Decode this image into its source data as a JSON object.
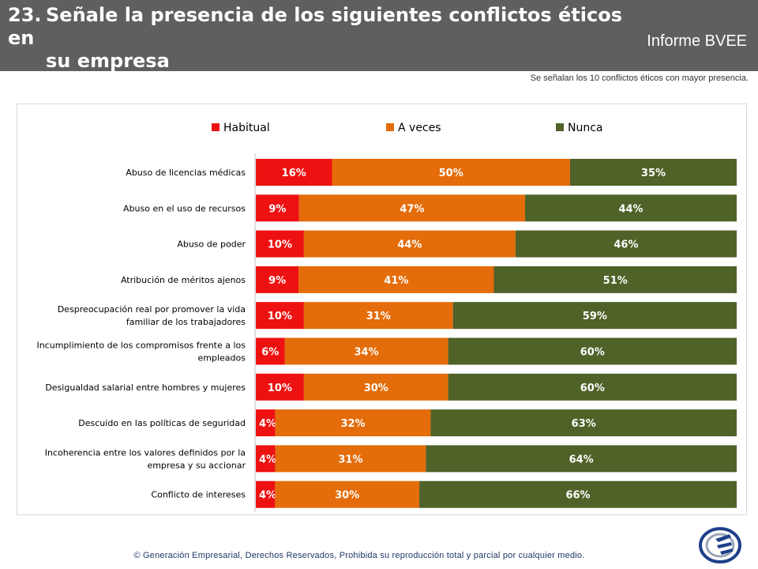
{
  "header": {
    "number": "23.",
    "title_line1": "Señale la presencia de los siguientes conflictos éticos en",
    "title_line2": "su empresa",
    "report_label": "Informe BVEE"
  },
  "subtitle": "Se señalan los 10 conflictos éticos con mayor presencia.",
  "footer": "© Generación Empresarial, Derechos Reservados, Prohibida su reproducción total y parcial por cualquier medio.",
  "colors": {
    "habitual": "#ee1111",
    "a_veces": "#e46c0a",
    "nunca": "#4f6228",
    "header_bg": "#5f5f5f"
  },
  "chart_data": {
    "type": "bar",
    "orientation": "horizontal",
    "stacked": true,
    "categories": [
      [
        "Abuso de licencias médicas"
      ],
      [
        "Abuso en el uso de recursos"
      ],
      [
        "Abuso de poder"
      ],
      [
        "Atribución de méritos ajenos"
      ],
      [
        "Despreocupación real por promover la vida",
        "familiar de los trabajadores"
      ],
      [
        "Incumplimiento de los compromisos frente a los",
        "empleados"
      ],
      [
        "Desigualdad salarial entre hombres y mujeres"
      ],
      [
        "Descuido en las políticas de seguridad"
      ],
      [
        "Incoherencia entre los valores definidos por la",
        "empresa y su accionar"
      ],
      [
        "Conflicto de intereses"
      ]
    ],
    "series": [
      {
        "name": "Habitual",
        "color": "#ee1111",
        "values": [
          16,
          9,
          10,
          9,
          10,
          6,
          10,
          4,
          4,
          4
        ]
      },
      {
        "name": "A veces",
        "color": "#e46c0a",
        "values": [
          50,
          47,
          44,
          41,
          31,
          34,
          30,
          32,
          31,
          30
        ]
      },
      {
        "name": "Nunca",
        "color": "#4f6228",
        "values": [
          35,
          44,
          46,
          51,
          59,
          60,
          60,
          63,
          64,
          66
        ]
      }
    ],
    "data_labels": [
      [
        "16%",
        "9%",
        "10%",
        "9%",
        "10%",
        "6%",
        "10%",
        "4%",
        "4%",
        "4%"
      ],
      [
        "50%",
        "47%",
        "44%",
        "41%",
        "31%",
        "34%",
        "30%",
        "32%",
        "31%",
        "30%"
      ],
      [
        "35%",
        "44%",
        "46%",
        "51%",
        "59%",
        "60%",
        "60%",
        "63%",
        "64%",
        "66%"
      ]
    ],
    "legend_position": "top",
    "grid": false
  }
}
